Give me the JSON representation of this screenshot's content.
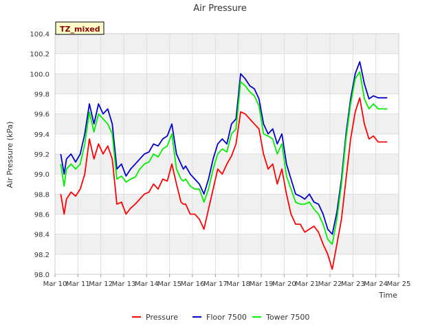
{
  "chart_data": {
    "type": "line",
    "title": "Air Pressure",
    "xlabel": "Time",
    "ylabel": "Air Pressure (kPa)",
    "annotation": "TZ_mixed",
    "x_ticks": [
      "Mar 10",
      "Mar 11",
      "Mar 12",
      "Mar 13",
      "Mar 14",
      "Mar 15",
      "Mar 16",
      "Mar 17",
      "Mar 18",
      "Mar 19",
      "Mar 20",
      "Mar 21",
      "Mar 22",
      "Mar 23",
      "Mar 24",
      "Mar 25"
    ],
    "y_ticks": [
      "98.0",
      "98.2",
      "98.4",
      "98.6",
      "98.8",
      "99.0",
      "99.2",
      "99.4",
      "99.6",
      "99.8",
      "100.0",
      "100.2",
      "100.4"
    ],
    "xlim": [
      0,
      15
    ],
    "x_unit": "days since Mar 10",
    "ylim": [
      98.0,
      100.4
    ],
    "grid": true,
    "legend_position": "bottom",
    "colors": {
      "Pressure": "#ff0000",
      "Floor 7500": "#0000cc",
      "Tower 7500": "#00ee00",
      "band": "#f0f0f0",
      "grid": "#dddddd",
      "annotation_bg": "#ffffcc",
      "annotation_text": "#8b0000"
    },
    "series": [
      {
        "name": "Pressure",
        "x": [
          0.25,
          0.4,
          0.5,
          0.7,
          0.9,
          1.1,
          1.3,
          1.5,
          1.7,
          1.9,
          2.1,
          2.3,
          2.5,
          2.7,
          2.9,
          3.1,
          3.3,
          3.5,
          3.7,
          3.9,
          4.1,
          4.3,
          4.5,
          4.7,
          4.9,
          5.1,
          5.3,
          5.5,
          5.6,
          5.7,
          5.9,
          6.1,
          6.3,
          6.5,
          6.7,
          6.9,
          7.1,
          7.3,
          7.5,
          7.7,
          7.9,
          8.1,
          8.3,
          8.5,
          8.7,
          8.9,
          9.1,
          9.3,
          9.5,
          9.7,
          9.9,
          10.1,
          10.3,
          10.5,
          10.7,
          10.9,
          11.1,
          11.3,
          11.5,
          11.7,
          11.9,
          12.1,
          12.3,
          12.5,
          12.7,
          12.9,
          13.1,
          13.3,
          13.5,
          13.7,
          13.9,
          14.1,
          14.3,
          14.5
        ],
        "y": [
          98.8,
          98.6,
          98.75,
          98.82,
          98.78,
          98.85,
          99.0,
          99.35,
          99.15,
          99.3,
          99.2,
          99.28,
          99.15,
          98.7,
          98.72,
          98.6,
          98.66,
          98.7,
          98.75,
          98.8,
          98.82,
          98.9,
          98.85,
          98.95,
          98.93,
          99.1,
          98.9,
          98.72,
          98.7,
          98.7,
          98.6,
          98.6,
          98.55,
          98.45,
          98.65,
          98.85,
          99.05,
          99.0,
          99.1,
          99.18,
          99.3,
          99.62,
          99.6,
          99.55,
          99.5,
          99.45,
          99.2,
          99.05,
          99.1,
          98.9,
          99.05,
          98.8,
          98.6,
          98.5,
          98.5,
          98.42,
          98.45,
          98.48,
          98.42,
          98.3,
          98.2,
          98.05,
          98.3,
          98.55,
          98.95,
          99.35,
          99.62,
          99.76,
          99.5,
          99.35,
          99.38,
          99.32,
          99.32,
          99.32
        ]
      },
      {
        "name": "Floor 7500",
        "x": [
          0.25,
          0.4,
          0.5,
          0.7,
          0.9,
          1.1,
          1.3,
          1.5,
          1.7,
          1.9,
          2.1,
          2.3,
          2.5,
          2.7,
          2.9,
          3.1,
          3.3,
          3.5,
          3.7,
          3.9,
          4.1,
          4.3,
          4.5,
          4.7,
          4.9,
          5.1,
          5.3,
          5.5,
          5.6,
          5.7,
          5.9,
          6.1,
          6.3,
          6.5,
          6.7,
          6.9,
          7.1,
          7.3,
          7.5,
          7.7,
          7.9,
          8.1,
          8.3,
          8.5,
          8.7,
          8.9,
          9.1,
          9.3,
          9.5,
          9.7,
          9.9,
          10.1,
          10.3,
          10.5,
          10.7,
          10.9,
          11.1,
          11.3,
          11.5,
          11.7,
          11.9,
          12.1,
          12.3,
          12.5,
          12.7,
          12.9,
          13.1,
          13.3,
          13.5,
          13.7,
          13.9,
          14.1,
          14.3,
          14.5
        ],
        "y": [
          99.2,
          99.0,
          99.15,
          99.2,
          99.12,
          99.2,
          99.4,
          99.7,
          99.5,
          99.7,
          99.6,
          99.65,
          99.5,
          99.05,
          99.1,
          98.98,
          99.05,
          99.1,
          99.15,
          99.2,
          99.22,
          99.3,
          99.28,
          99.35,
          99.38,
          99.5,
          99.2,
          99.1,
          99.05,
          99.08,
          99.0,
          98.95,
          98.9,
          98.8,
          98.95,
          99.15,
          99.3,
          99.35,
          99.3,
          99.5,
          99.55,
          100.0,
          99.95,
          99.88,
          99.85,
          99.75,
          99.5,
          99.4,
          99.45,
          99.3,
          99.4,
          99.1,
          98.95,
          98.8,
          98.78,
          98.75,
          98.8,
          98.72,
          98.7,
          98.6,
          98.45,
          98.4,
          98.62,
          98.95,
          99.4,
          99.75,
          100.0,
          100.12,
          99.9,
          99.75,
          99.78,
          99.76,
          99.76,
          99.76
        ]
      },
      {
        "name": "Tower 7500",
        "x": [
          0.25,
          0.4,
          0.5,
          0.7,
          0.9,
          1.1,
          1.3,
          1.5,
          1.7,
          1.9,
          2.1,
          2.3,
          2.5,
          2.7,
          2.9,
          3.1,
          3.3,
          3.5,
          3.7,
          3.9,
          4.1,
          4.3,
          4.5,
          4.7,
          4.9,
          5.1,
          5.3,
          5.5,
          5.6,
          5.7,
          5.9,
          6.1,
          6.3,
          6.5,
          6.7,
          6.9,
          7.1,
          7.3,
          7.5,
          7.7,
          7.9,
          8.1,
          8.3,
          8.5,
          8.7,
          8.9,
          9.1,
          9.3,
          9.5,
          9.7,
          9.9,
          10.1,
          10.3,
          10.5,
          10.7,
          10.9,
          11.1,
          11.3,
          11.5,
          11.7,
          11.9,
          12.1,
          12.3,
          12.5,
          12.7,
          12.9,
          13.1,
          13.3,
          13.5,
          13.7,
          13.9,
          14.1,
          14.3,
          14.5
        ],
        "y": [
          99.1,
          98.88,
          99.05,
          99.1,
          99.05,
          99.1,
          99.3,
          99.62,
          99.42,
          99.6,
          99.55,
          99.5,
          99.4,
          98.95,
          98.98,
          98.92,
          98.95,
          98.97,
          99.05,
          99.1,
          99.12,
          99.2,
          99.17,
          99.25,
          99.28,
          99.4,
          99.05,
          98.95,
          98.93,
          98.95,
          98.88,
          98.85,
          98.85,
          98.72,
          98.85,
          99.05,
          99.2,
          99.25,
          99.22,
          99.4,
          99.45,
          99.92,
          99.88,
          99.82,
          99.78,
          99.68,
          99.4,
          99.38,
          99.35,
          99.2,
          99.3,
          98.98,
          98.85,
          98.72,
          98.7,
          98.7,
          98.72,
          98.65,
          98.6,
          98.5,
          98.35,
          98.3,
          98.55,
          98.9,
          99.35,
          99.7,
          99.95,
          100.02,
          99.75,
          99.65,
          99.7,
          99.65,
          99.65,
          99.65
        ]
      }
    ]
  }
}
